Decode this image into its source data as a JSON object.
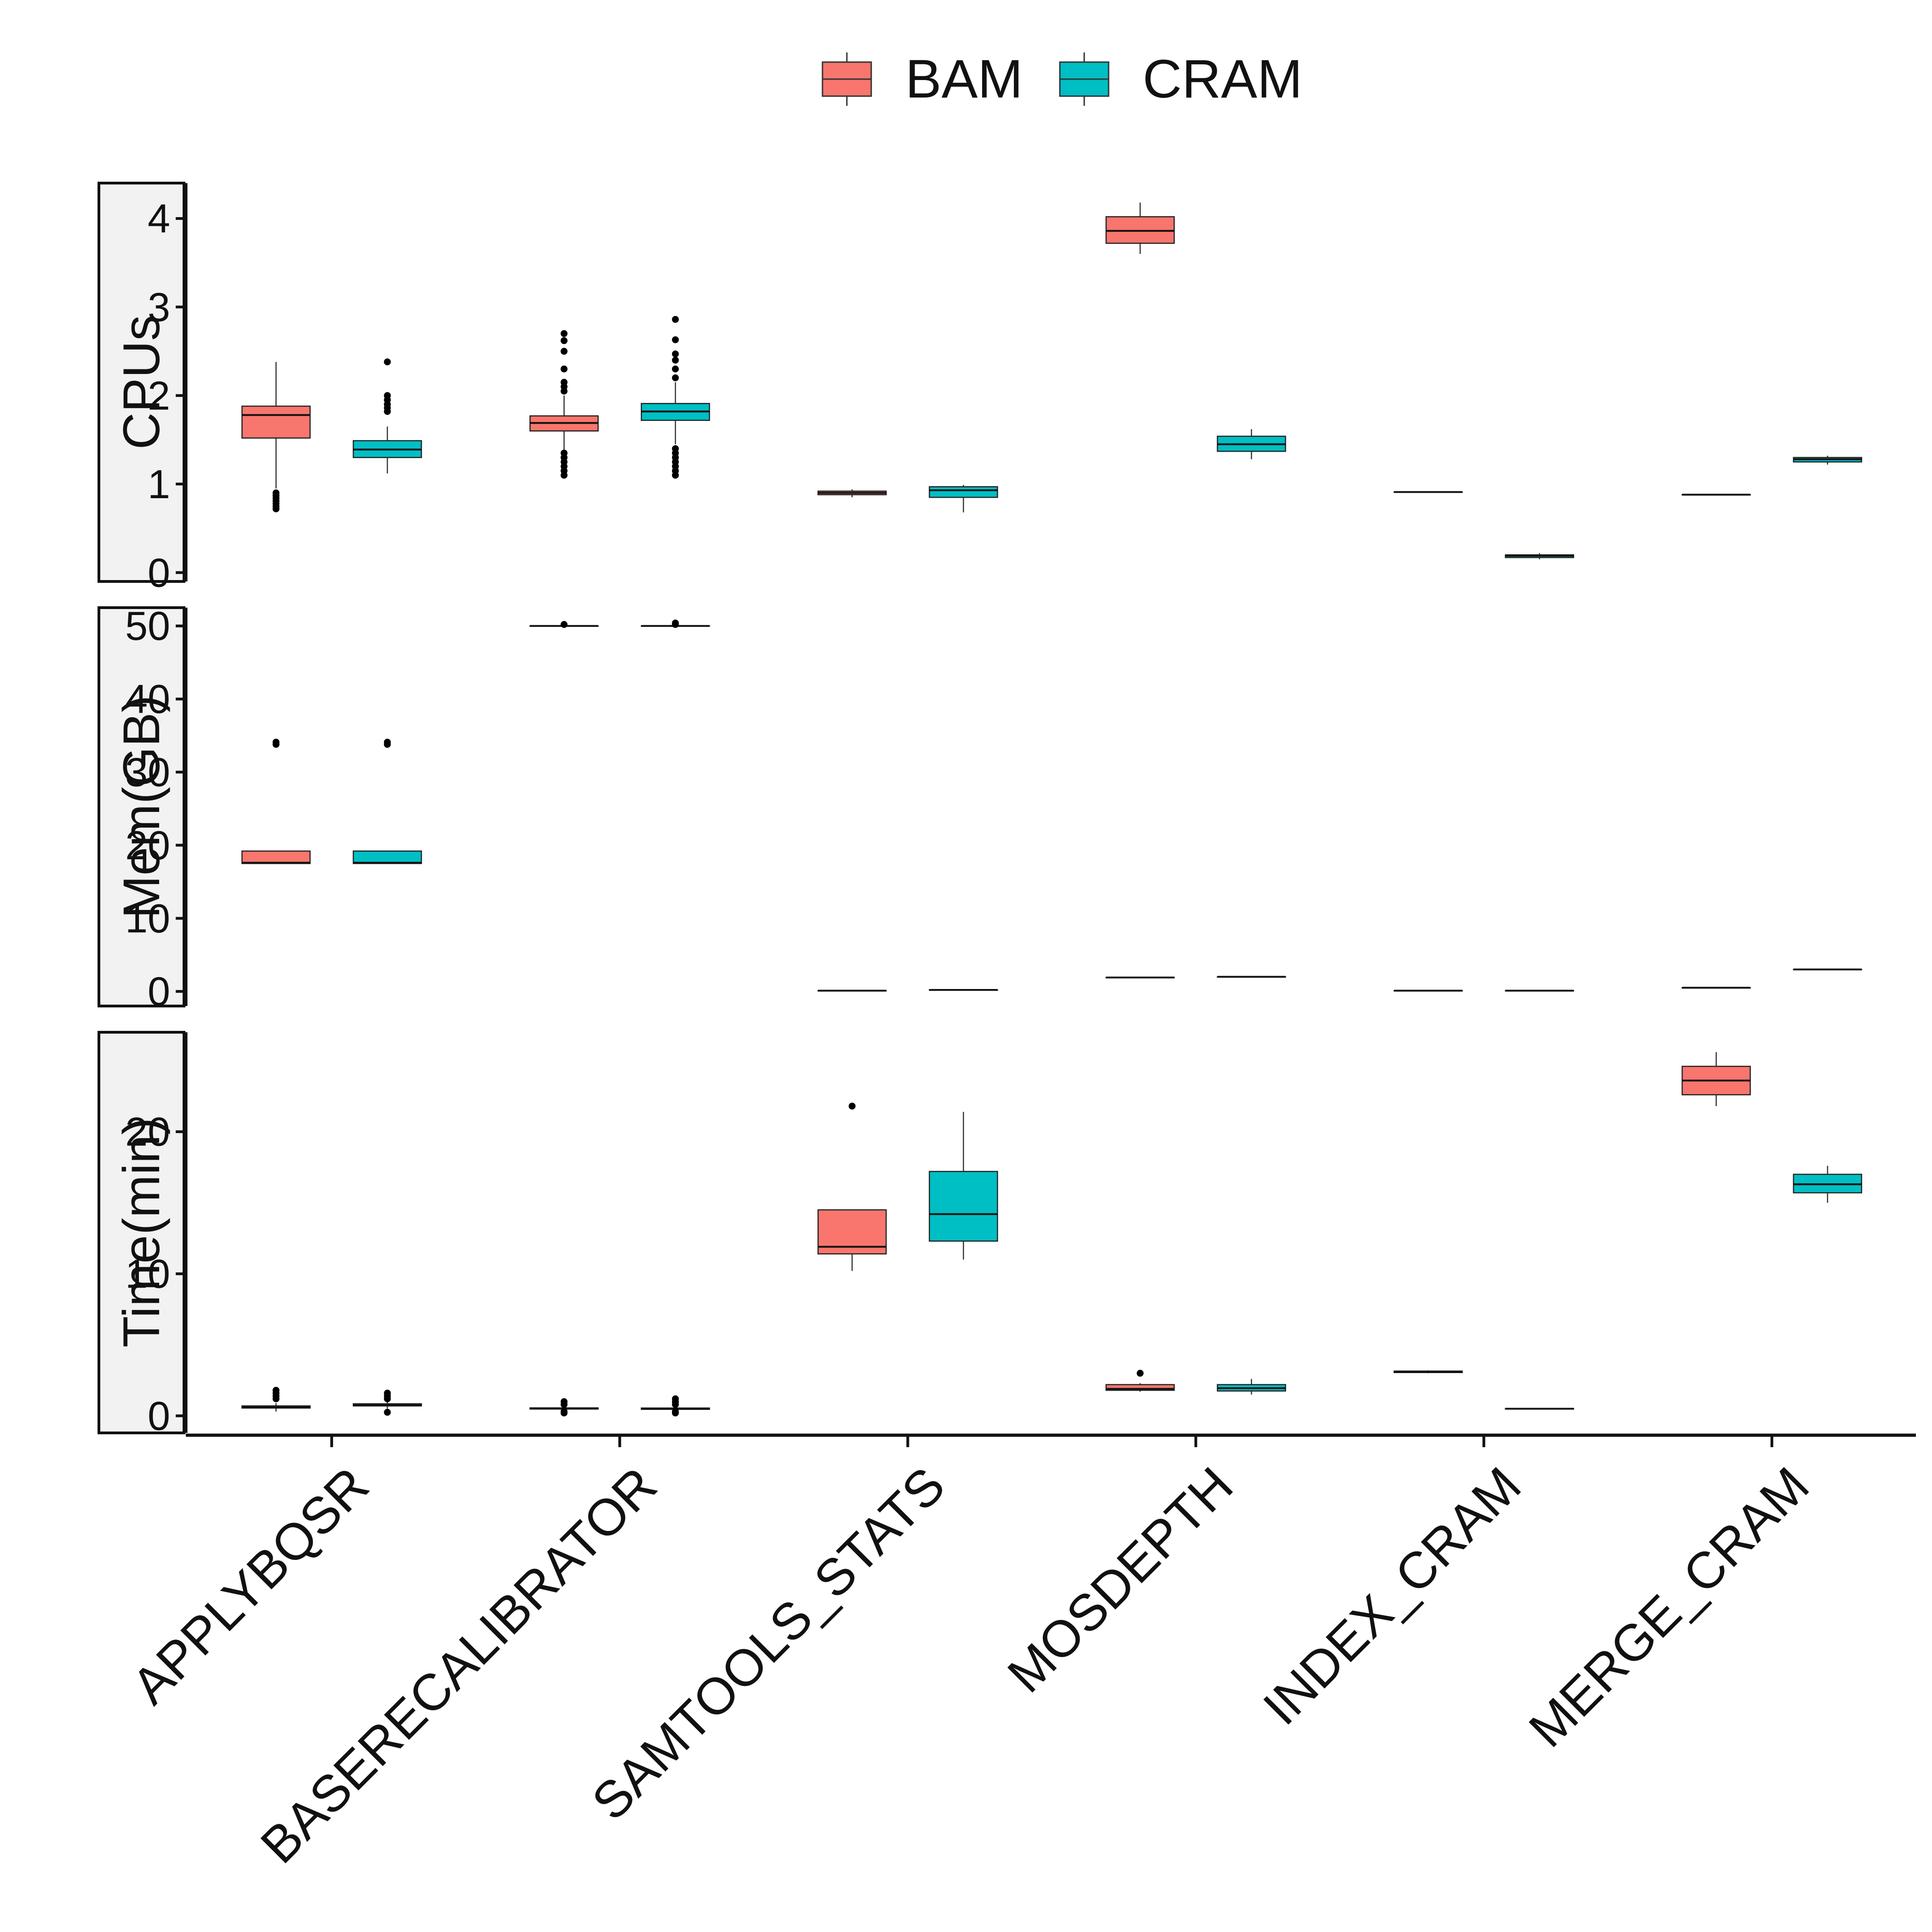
{
  "chart_data": {
    "type": "boxplot",
    "categories": [
      "APPLYBQSR",
      "BASERECALIBRATOR",
      "SAMTOOLS_STATS",
      "MOSDEPTH",
      "INDEX_CRAM",
      "MERGE_CRAM"
    ],
    "legend": {
      "position": "top",
      "entries": [
        "BAM",
        "CRAM"
      ]
    },
    "colors": {
      "BAM": "#F8766D",
      "CRAM": "#00BFC4"
    },
    "grid": false,
    "panels": [
      {
        "label": "CPUs",
        "ylim": [
          -0.1,
          4.4
        ],
        "ticks": [
          0,
          1,
          2,
          3,
          4
        ],
        "boxes": [
          {
            "category": "APPLYBQSR",
            "series": "BAM",
            "lower": 0.95,
            "q1": 1.52,
            "median": 1.78,
            "q3": 1.88,
            "upper": 2.38,
            "outliers": [
              0.72,
              0.75,
              0.78,
              0.81,
              0.84,
              0.87,
              0.9
            ]
          },
          {
            "category": "APPLYBQSR",
            "series": "CRAM",
            "lower": 1.12,
            "q1": 1.3,
            "median": 1.39,
            "q3": 1.49,
            "upper": 1.65,
            "outliers": [
              1.82,
              1.86,
              1.9,
              1.95,
              2.0,
              2.38
            ]
          },
          {
            "category": "BASERECALIBRATOR",
            "series": "BAM",
            "lower": 1.38,
            "q1": 1.6,
            "median": 1.69,
            "q3": 1.77,
            "upper": 2.0,
            "outliers": [
              1.1,
              1.15,
              1.2,
              1.25,
              1.3,
              1.35,
              2.05,
              2.1,
              2.15,
              2.3,
              2.5,
              2.62,
              2.7
            ]
          },
          {
            "category": "BASERECALIBRATOR",
            "series": "CRAM",
            "lower": 1.45,
            "q1": 1.72,
            "median": 1.82,
            "q3": 1.91,
            "upper": 2.15,
            "outliers": [
              1.1,
              1.15,
              1.2,
              1.25,
              1.3,
              1.35,
              1.4,
              2.2,
              2.3,
              2.4,
              2.47,
              2.63,
              2.86
            ]
          },
          {
            "category": "SAMTOOLS_STATS",
            "series": "BAM",
            "lower": 0.85,
            "q1": 0.88,
            "median": 0.9,
            "q3": 0.92,
            "upper": 0.94,
            "outliers": []
          },
          {
            "category": "SAMTOOLS_STATS",
            "series": "CRAM",
            "lower": 0.68,
            "q1": 0.85,
            "median": 0.93,
            "q3": 0.97,
            "upper": 0.99,
            "outliers": []
          },
          {
            "category": "MOSDEPTH",
            "series": "BAM",
            "lower": 3.6,
            "q1": 3.72,
            "median": 3.86,
            "q3": 4.02,
            "upper": 4.18,
            "outliers": []
          },
          {
            "category": "MOSDEPTH",
            "series": "CRAM",
            "lower": 1.28,
            "q1": 1.37,
            "median": 1.45,
            "q3": 1.54,
            "upper": 1.62,
            "outliers": []
          },
          {
            "category": "INDEX_CRAM",
            "series": "BAM",
            "lower": 0.91,
            "q1": 0.91,
            "median": 0.91,
            "q3": 0.91,
            "upper": 0.91,
            "outliers": []
          },
          {
            "category": "INDEX_CRAM",
            "series": "CRAM",
            "lower": 0.15,
            "q1": 0.17,
            "median": 0.19,
            "q3": 0.2,
            "upper": 0.22,
            "outliers": []
          },
          {
            "category": "MERGE_CRAM",
            "series": "BAM",
            "lower": 0.88,
            "q1": 0.88,
            "median": 0.88,
            "q3": 0.88,
            "upper": 0.88,
            "outliers": []
          },
          {
            "category": "MERGE_CRAM",
            "series": "CRAM",
            "lower": 1.22,
            "q1": 1.25,
            "median": 1.28,
            "q3": 1.3,
            "upper": 1.32,
            "outliers": []
          }
        ]
      },
      {
        "label": "Mem(GB)",
        "ylim": [
          -2,
          52.5
        ],
        "ticks": [
          0,
          10,
          20,
          30,
          40,
          50
        ],
        "boxes": [
          {
            "category": "APPLYBQSR",
            "series": "BAM",
            "lower": 17.5,
            "q1": 17.5,
            "median": 17.6,
            "q3": 19.2,
            "upper": 19.2,
            "outliers": [
              33.8,
              34.1
            ]
          },
          {
            "category": "APPLYBQSR",
            "series": "CRAM",
            "lower": 17.5,
            "q1": 17.5,
            "median": 17.6,
            "q3": 19.2,
            "upper": 19.2,
            "outliers": [
              33.8,
              34.1
            ]
          },
          {
            "category": "BASERECALIBRATOR",
            "series": "BAM",
            "lower": 50.0,
            "q1": 50.0,
            "median": 50.0,
            "q3": 50.0,
            "upper": 50.0,
            "outliers": [
              50.2
            ]
          },
          {
            "category": "BASERECALIBRATOR",
            "series": "CRAM",
            "lower": 50.0,
            "q1": 50.0,
            "median": 50.0,
            "q3": 50.0,
            "upper": 50.0,
            "outliers": [
              50.2,
              50.4
            ]
          },
          {
            "category": "SAMTOOLS_STATS",
            "series": "BAM",
            "lower": 0.1,
            "q1": 0.1,
            "median": 0.1,
            "q3": 0.1,
            "upper": 0.1,
            "outliers": []
          },
          {
            "category": "SAMTOOLS_STATS",
            "series": "CRAM",
            "lower": 0.2,
            "q1": 0.2,
            "median": 0.2,
            "q3": 0.2,
            "upper": 0.2,
            "outliers": []
          },
          {
            "category": "MOSDEPTH",
            "series": "BAM",
            "lower": 1.9,
            "q1": 1.9,
            "median": 1.9,
            "q3": 1.9,
            "upper": 1.9,
            "outliers": []
          },
          {
            "category": "MOSDEPTH",
            "series": "CRAM",
            "lower": 2.0,
            "q1": 2.0,
            "median": 2.0,
            "q3": 2.0,
            "upper": 2.0,
            "outliers": []
          },
          {
            "category": "INDEX_CRAM",
            "series": "BAM",
            "lower": 0.1,
            "q1": 0.1,
            "median": 0.1,
            "q3": 0.1,
            "upper": 0.1,
            "outliers": []
          },
          {
            "category": "INDEX_CRAM",
            "series": "CRAM",
            "lower": 0.1,
            "q1": 0.1,
            "median": 0.1,
            "q3": 0.1,
            "upper": 0.1,
            "outliers": []
          },
          {
            "category": "MERGE_CRAM",
            "series": "BAM",
            "lower": 0.5,
            "q1": 0.5,
            "median": 0.5,
            "q3": 0.5,
            "upper": 0.5,
            "outliers": []
          },
          {
            "category": "MERGE_CRAM",
            "series": "CRAM",
            "lower": 3.0,
            "q1": 3.0,
            "median": 3.0,
            "q3": 3.0,
            "upper": 3.0,
            "outliers": []
          }
        ]
      },
      {
        "label": "Time(min)",
        "ylim": [
          -1.2,
          27
        ],
        "ticks": [
          0,
          10,
          20
        ],
        "boxes": [
          {
            "category": "APPLYBQSR",
            "series": "BAM",
            "lower": 0.3,
            "q1": 0.55,
            "median": 0.6,
            "q3": 0.7,
            "upper": 0.9,
            "outliers": [
              1.2,
              1.4,
              1.6,
              1.8
            ]
          },
          {
            "category": "APPLYBQSR",
            "series": "CRAM",
            "lower": 0.5,
            "q1": 0.7,
            "median": 0.75,
            "q3": 0.85,
            "upper": 1.0,
            "outliers": [
              0.25,
              1.2,
              1.4,
              1.6
            ]
          },
          {
            "category": "BASERECALIBRATOR",
            "series": "BAM",
            "lower": 0.4,
            "q1": 0.48,
            "median": 0.52,
            "q3": 0.56,
            "upper": 0.6,
            "outliers": [
              0.2,
              0.3,
              0.8,
              1.0
            ]
          },
          {
            "category": "BASERECALIBRATOR",
            "series": "CRAM",
            "lower": 0.4,
            "q1": 0.46,
            "median": 0.5,
            "q3": 0.55,
            "upper": 0.6,
            "outliers": [
              0.2,
              0.3,
              0.8,
              1.0,
              1.2
            ]
          },
          {
            "category": "SAMTOOLS_STATS",
            "series": "BAM",
            "lower": 10.2,
            "q1": 11.4,
            "median": 11.9,
            "q3": 14.5,
            "upper": 14.5,
            "outliers": [
              21.8
            ]
          },
          {
            "category": "SAMTOOLS_STATS",
            "series": "CRAM",
            "lower": 11.0,
            "q1": 12.3,
            "median": 14.2,
            "q3": 17.2,
            "upper": 21.4,
            "outliers": []
          },
          {
            "category": "MOSDEPTH",
            "series": "BAM",
            "lower": 1.7,
            "q1": 1.8,
            "median": 1.9,
            "q3": 2.2,
            "upper": 2.3,
            "outliers": [
              3.0
            ]
          },
          {
            "category": "MOSDEPTH",
            "series": "CRAM",
            "lower": 1.5,
            "q1": 1.75,
            "median": 1.95,
            "q3": 2.2,
            "upper": 2.6,
            "outliers": []
          },
          {
            "category": "INDEX_CRAM",
            "series": "BAM",
            "lower": 3.0,
            "q1": 3.05,
            "median": 3.1,
            "q3": 3.15,
            "upper": 3.2,
            "outliers": []
          },
          {
            "category": "INDEX_CRAM",
            "series": "CRAM",
            "lower": 0.45,
            "q1": 0.48,
            "median": 0.5,
            "q3": 0.52,
            "upper": 0.55,
            "outliers": []
          },
          {
            "category": "MERGE_CRAM",
            "series": "BAM",
            "lower": 21.8,
            "q1": 22.6,
            "median": 23.6,
            "q3": 24.6,
            "upper": 25.6,
            "outliers": []
          },
          {
            "category": "MERGE_CRAM",
            "series": "CRAM",
            "lower": 15.0,
            "q1": 15.7,
            "median": 16.3,
            "q3": 17.0,
            "upper": 17.6,
            "outliers": []
          }
        ]
      }
    ]
  }
}
